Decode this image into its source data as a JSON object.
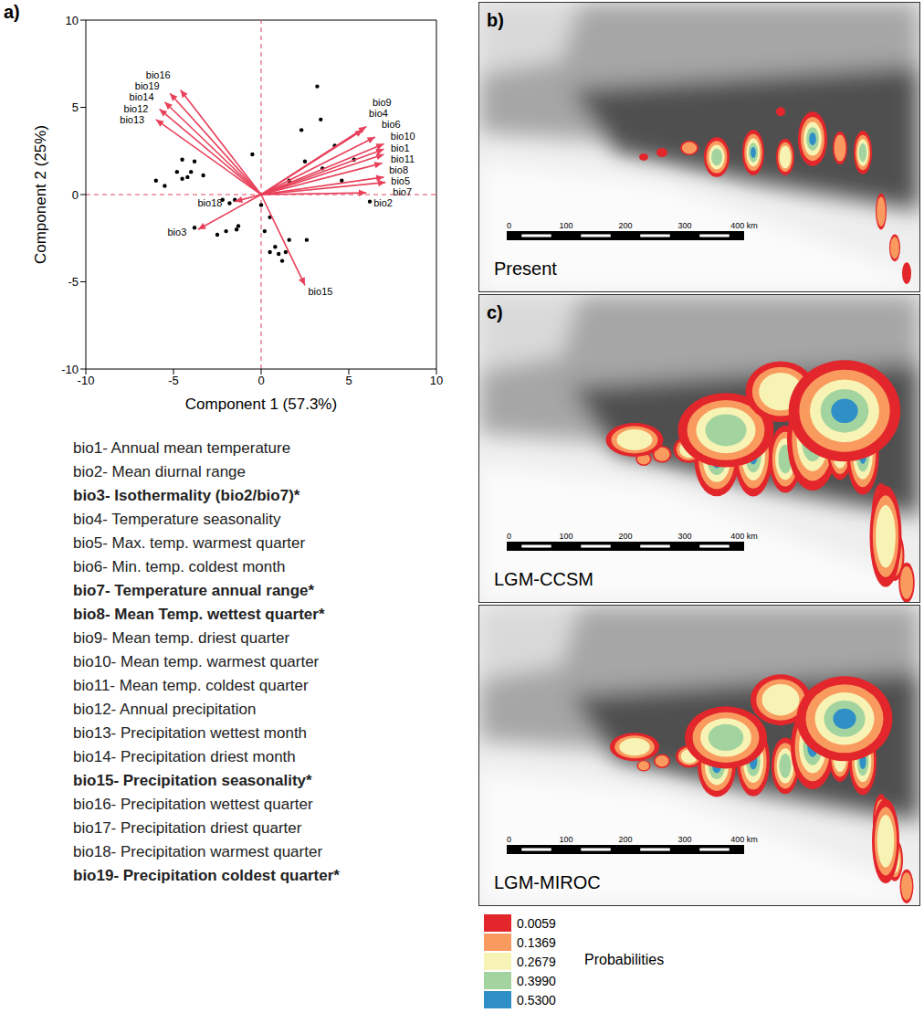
{
  "chart_data": {
    "type": "scatter",
    "panel_label": "a)",
    "x_label": "Component 1 (57.3%)",
    "y_label": "Component 2 (25%)",
    "xlim": [
      -10,
      10
    ],
    "ylim": [
      -10,
      10
    ],
    "xticks": [
      -10,
      -5,
      0,
      5,
      10
    ],
    "yticks": [
      -10,
      -5,
      0,
      5,
      10
    ],
    "reference_lines": {
      "x": 0,
      "y": 0,
      "color": "#e8405a",
      "line_style": "dashed"
    },
    "points": {
      "x": [
        -6.0,
        -5.5,
        -4.8,
        -4.5,
        -4.2,
        -4.0,
        -3.8,
        -4.5,
        -3.3,
        -2.2,
        -1.8,
        -1.5,
        -2.5,
        -2.0,
        -1.4,
        -1.3,
        0.2,
        0.5,
        1.0,
        1.4,
        1.6,
        1.2,
        2.6,
        0.5,
        0.0,
        -0.5,
        1.6,
        3.2,
        3.4,
        2.3,
        2.5,
        3.5,
        4.6,
        4.2,
        5.3,
        6.2,
        -3.8,
        0.8
      ],
      "y": [
        0.8,
        0.5,
        1.3,
        0.9,
        1.0,
        1.3,
        1.9,
        2.0,
        1.1,
        -0.3,
        -0.5,
        -0.3,
        -2.3,
        -2.1,
        -2.0,
        -1.8,
        -2.1,
        -3.3,
        -3.4,
        -3.3,
        -2.6,
        -3.8,
        -2.6,
        -1.3,
        -0.6,
        2.3,
        0.8,
        6.2,
        4.3,
        3.7,
        1.9,
        1.5,
        0.8,
        2.8,
        2.0,
        -0.4,
        -1.9,
        -3.0
      ],
      "color": "#000000",
      "marker": "circle"
    },
    "vectors": {
      "labels": [
        "bio1",
        "bio2",
        "bio3",
        "bio4",
        "bio5",
        "bio6",
        "bio7",
        "bio8",
        "bio9",
        "bio10",
        "bio11",
        "bio12",
        "bio13",
        "bio14",
        "bio15",
        "bio16",
        "bio18",
        "bio19"
      ],
      "x": [
        7.0,
        6.0,
        -3.6,
        5.8,
        7.0,
        6.5,
        7.1,
        6.9,
        6.0,
        7.0,
        7.0,
        -5.8,
        -6.0,
        -5.5,
        2.5,
        -4.6,
        -1.5,
        -5.2
      ],
      "y": [
        2.6,
        0.1,
        -2.0,
        3.7,
        1.0,
        3.3,
        0.7,
        1.8,
        3.9,
        2.9,
        2.3,
        4.9,
        4.3,
        5.3,
        -5.2,
        6.0,
        -0.4,
        5.8
      ],
      "color": "#e8405a"
    }
  },
  "variables": [
    {
      "text": "bio1- Annual mean temperature",
      "bold": false
    },
    {
      "text": "bio2- Mean diurnal range",
      "bold": false
    },
    {
      "text": "bio3- Isothermality (bio2/bio7)*",
      "bold": true
    },
    {
      "text": "bio4- Temperature seasonality",
      "bold": false
    },
    {
      "text": "bio5- Max. temp. warmest quarter",
      "bold": false
    },
    {
      "text": "bio6- Min. temp. coldest month",
      "bold": false
    },
    {
      "text": "bio7- Temperature annual range*",
      "bold": true
    },
    {
      "text": "bio8- Mean Temp. wettest quarter*",
      "bold": true
    },
    {
      "text": "bio9- Mean temp. driest quarter",
      "bold": false
    },
    {
      "text": "bio10- Mean temp. warmest quarter",
      "bold": false
    },
    {
      "text": "bio11- Mean temp. coldest quarter",
      "bold": false
    },
    {
      "text": "bio12- Annual precipitation",
      "bold": false
    },
    {
      "text": "bio13- Precipitation wettest month",
      "bold": false
    },
    {
      "text": "bio14- Precipitation driest month",
      "bold": false
    },
    {
      "text": "bio15- Precipitation seasonality*",
      "bold": true
    },
    {
      "text": "bio16- Precipitation wettest quarter",
      "bold": false
    },
    {
      "text": "bio17- Precipitation driest quarter",
      "bold": false
    },
    {
      "text": "bio18- Precipitation warmest quarter",
      "bold": false
    },
    {
      "text": "bio19- Precipitation coldest quarter*",
      "bold": true
    }
  ],
  "maps": {
    "panels": [
      {
        "letter": "b)",
        "label": "Present"
      },
      {
        "letter": "c)",
        "label": "LGM-CCSM"
      },
      {
        "label": "LGM-MIROC"
      }
    ],
    "scale_bar": {
      "ticks": [
        0,
        100,
        200,
        300,
        {
          "value": 400,
          "label": "400 km"
        }
      ]
    },
    "legend": {
      "title": "Probabilities",
      "colors": [
        "#e3262b",
        "#f99a5e",
        "#f7f3b4",
        "#a3d4a0",
        "#2f8fc6"
      ],
      "values": [
        0.0059,
        0.1369,
        0.2679,
        {
          "value": 0.399,
          "label": "0.3990"
        },
        {
          "value": 0.53,
          "label": "0.5300"
        }
      ]
    }
  }
}
